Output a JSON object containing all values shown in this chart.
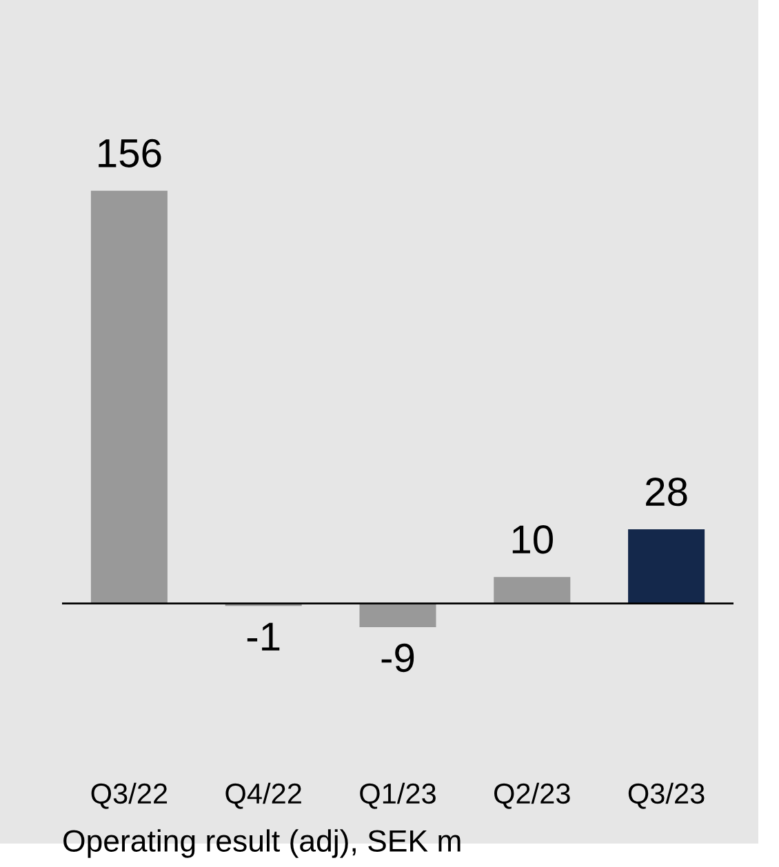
{
  "chart_data": {
    "type": "bar",
    "categories": [
      "Q3/22",
      "Q4/22",
      "Q1/23",
      "Q2/23",
      "Q3/23"
    ],
    "values": [
      156,
      -1,
      -9,
      10,
      28
    ],
    "colors": [
      "#999999",
      "#999999",
      "#999999",
      "#999999",
      "#14284b"
    ],
    "data_labels": true,
    "grid": false,
    "legend": false,
    "annotations": [
      "Operating result (adj), SEK m"
    ]
  }
}
